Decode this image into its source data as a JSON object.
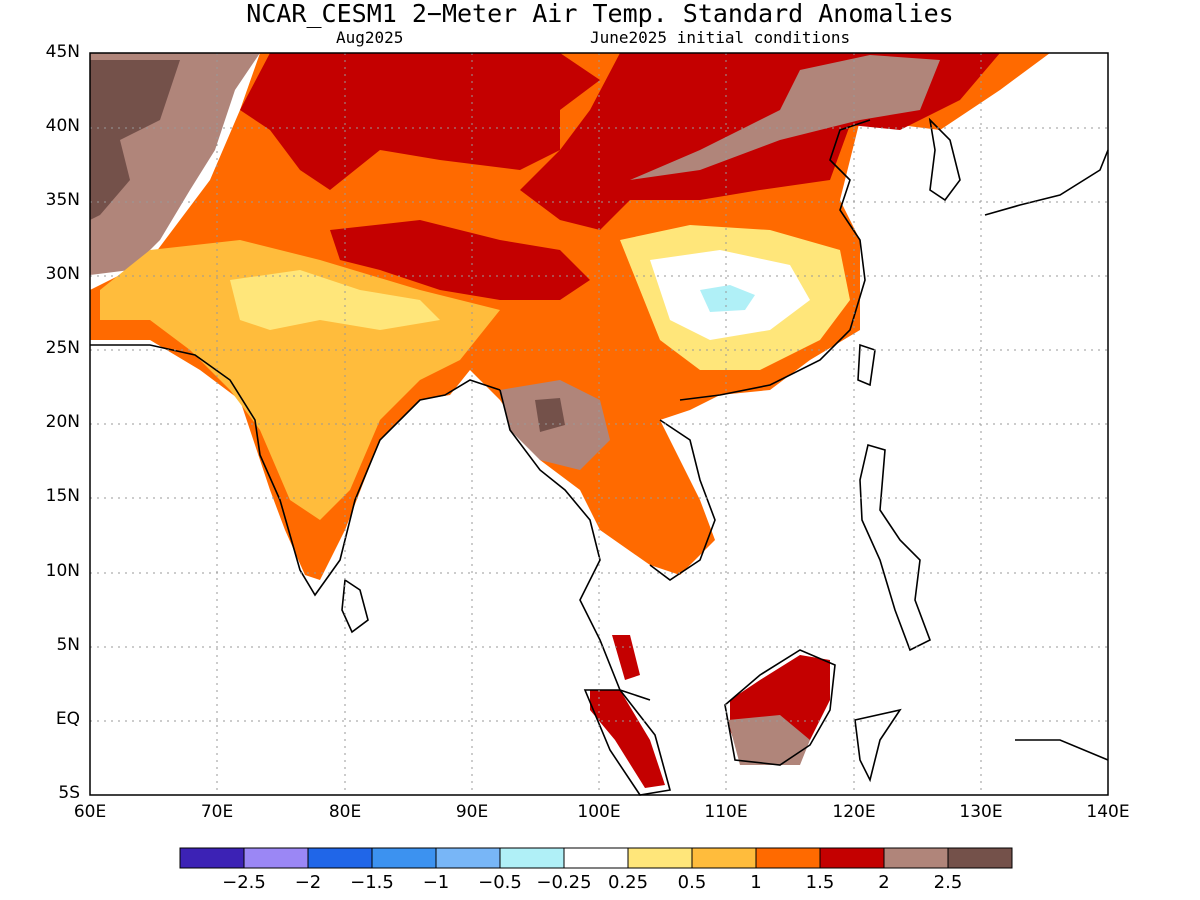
{
  "title": "NCAR_CESM1 2−Meter Air Temp. Standard Anomalies",
  "subtitle_left": "Aug2025",
  "subtitle_right": "June2025 initial conditions",
  "axes": {
    "y_labels": [
      "45N",
      "40N",
      "35N",
      "30N",
      "25N",
      "20N",
      "15N",
      "10N",
      "5N",
      "EQ",
      "5S"
    ],
    "x_labels": [
      "60E",
      "70E",
      "80E",
      "90E",
      "100E",
      "110E",
      "120E",
      "130E",
      "140E"
    ],
    "lat_range": [
      -5,
      45
    ],
    "lon_range": [
      60,
      140
    ],
    "grid": "dotted"
  },
  "colorbar": {
    "colors": [
      "#3c22b5",
      "#9b87f5",
      "#2066e8",
      "#3c92f0",
      "#78b6f7",
      "#b0f0f7",
      "#ffffff",
      "#ffe67a",
      "#ffbc3c",
      "#ff6a00",
      "#c40000",
      "#b0857a",
      "#74514a"
    ],
    "labels": [
      "−2.5",
      "−2",
      "−1.5",
      "−1",
      "−0.5",
      "−0.25",
      "0.25",
      "0.5",
      "1",
      "1.5",
      "2",
      "2.5"
    ]
  }
}
